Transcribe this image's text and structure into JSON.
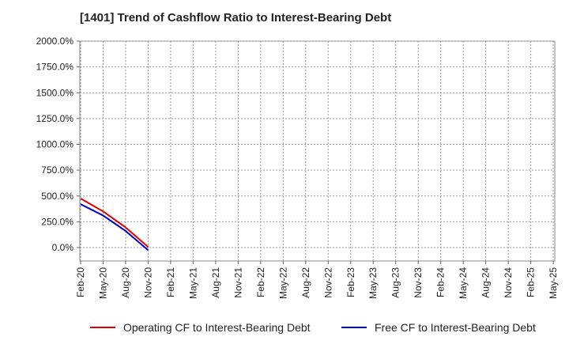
{
  "chart_data": {
    "type": "line",
    "title": "[1401]  Trend of Cashflow Ratio to Interest-Bearing Debt",
    "xlabel": "",
    "ylabel": "",
    "x_ticks": [
      "Feb-20",
      "May-20",
      "Aug-20",
      "Nov-20",
      "Feb-21",
      "May-21",
      "Aug-21",
      "Nov-21",
      "Feb-22",
      "May-22",
      "Aug-22",
      "Nov-22",
      "Feb-23",
      "May-23",
      "Aug-23",
      "Nov-23",
      "Feb-24",
      "May-24",
      "Aug-24",
      "Nov-24",
      "Feb-25",
      "May-25"
    ],
    "ylim": [
      -130,
      2000
    ],
    "y_ticks": [
      0,
      250,
      500,
      750,
      1000,
      1250,
      1500,
      1750,
      2000
    ],
    "y_tick_labels": [
      "0.0%",
      "250.0%",
      "500.0%",
      "750.0%",
      "1000.0%",
      "1250.0%",
      "1500.0%",
      "1750.0%",
      "2000.0%"
    ],
    "grid": true,
    "legend_position": "bottom",
    "x": [
      "Feb-20",
      "May-20",
      "Aug-20",
      "Nov-20"
    ],
    "series": [
      {
        "name": "Operating CF to Interest-Bearing Debt",
        "color": "#e00000",
        "values": [
          475,
          350,
          195,
          5
        ]
      },
      {
        "name": "Free CF to Interest-Bearing Debt",
        "color": "#0000cc",
        "values": [
          420,
          310,
          160,
          -25
        ]
      }
    ]
  }
}
